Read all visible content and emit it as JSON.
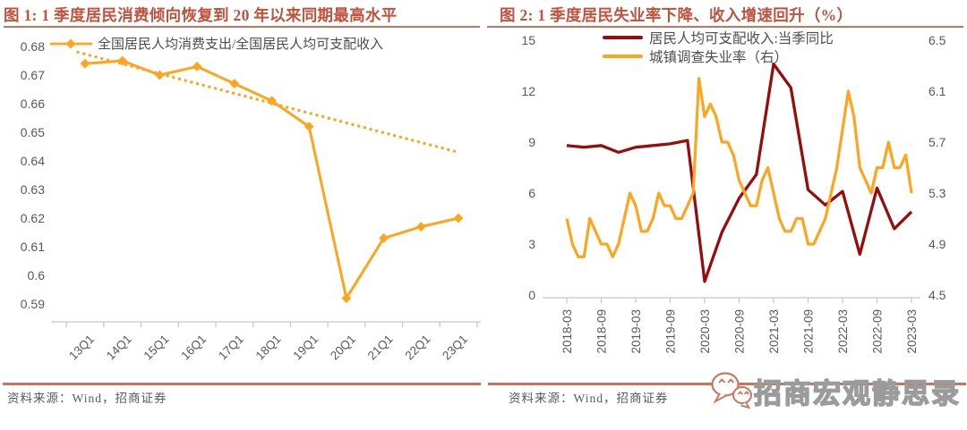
{
  "colors": {
    "title_red": "#C0523C",
    "rule_salmon": "#CC7257",
    "orange": "#FFA41E",
    "dark_red": "#970D0D",
    "axis_text": "#595959",
    "axis_line": "#C8C8C8",
    "watermark_gray": "#9B9B9B"
  },
  "sources": {
    "fig1": "资料来源：Wind，招商证券",
    "fig2": "资料来源：Wind，招商证券"
  },
  "watermark": {
    "icon": "wechat-icon",
    "text": "招商宏观静思录"
  },
  "chart_data": [
    {
      "type": "line",
      "title": "图 1: 1 季度居民消费倾向恢复到 20 年以来同期最高水平",
      "categories": [
        "13Q1",
        "14Q1",
        "15Q1",
        "16Q1",
        "17Q1",
        "18Q1",
        "19Q1",
        "20Q1",
        "21Q1",
        "22Q1",
        "23Q1"
      ],
      "series": [
        {
          "name": "全国居民人均消费支出/全国居民人均可支配收入",
          "values": [
            0.674,
            0.675,
            0.67,
            0.673,
            0.667,
            0.661,
            0.652,
            0.592,
            0.613,
            0.617,
            0.62
          ],
          "color": "#FFA41E",
          "style": "solid",
          "marker": "diamond"
        },
        {
          "name": "线性趋势线",
          "type": "trend",
          "start_value": 0.678,
          "end_value": 0.643,
          "color": "#FFA41E",
          "style": "dotted"
        }
      ],
      "ylim": [
        0.59,
        0.68
      ],
      "yticks": [
        "0.68",
        "0.67",
        "0.66",
        "0.65",
        "0.64",
        "0.63",
        "0.62",
        "0.61",
        "0.6",
        "0.59"
      ],
      "grid": false,
      "legend_position": "top"
    },
    {
      "type": "line",
      "title": "图 2: 1 季度居民失业率下降、收入增速回升（%）",
      "x_tick_labels": [
        "2018-03",
        "2018-09",
        "2019-03",
        "2019-09",
        "2020-03",
        "2020-09",
        "2021-03",
        "2021-09",
        "2022-03",
        "2022-09",
        "2023-03"
      ],
      "series": [
        {
          "name": "居民人均可支配收入:当季同比",
          "axis": "left",
          "frequency": "quarterly",
          "start": "2018-03",
          "values": [
            8.8,
            8.7,
            8.8,
            8.4,
            8.7,
            8.8,
            8.9,
            9.1,
            0.8,
            3.7,
            5.7,
            7.1,
            13.6,
            12.2,
            6.2,
            5.3,
            6.1,
            2.4,
            6.3,
            3.9,
            4.9
          ],
          "color": "#970D0D"
        },
        {
          "name": "城镇调查失业率（右）",
          "axis": "right",
          "frequency": "monthly",
          "start": "2018-03",
          "values": [
            5.1,
            4.9,
            4.8,
            4.8,
            5.1,
            5.0,
            4.9,
            4.9,
            4.8,
            4.9,
            5.1,
            5.3,
            5.2,
            5.0,
            5.0,
            5.1,
            5.3,
            5.2,
            5.2,
            5.1,
            5.1,
            5.2,
            5.3,
            6.2,
            5.9,
            6.0,
            5.9,
            5.7,
            5.7,
            5.6,
            5.4,
            5.3,
            5.2,
            5.2,
            5.4,
            5.5,
            5.3,
            5.1,
            5.0,
            5.0,
            5.1,
            5.1,
            4.9,
            4.9,
            5.0,
            5.1,
            5.3,
            5.5,
            5.8,
            6.1,
            5.9,
            5.5,
            5.4,
            5.3,
            5.5,
            5.5,
            5.7,
            5.5,
            5.5,
            5.6,
            5.3
          ],
          "color": "#FFA41E"
        }
      ],
      "ylim_left": [
        0,
        15
      ],
      "yticks_left": [
        "15",
        "12",
        "9",
        "6",
        "3",
        "0"
      ],
      "ylim_right": [
        4.5,
        6.5
      ],
      "yticks_right": [
        "6.5",
        "6.1",
        "5.7",
        "5.3",
        "4.9",
        "4.5"
      ],
      "grid": false,
      "legend_position": "top"
    }
  ]
}
